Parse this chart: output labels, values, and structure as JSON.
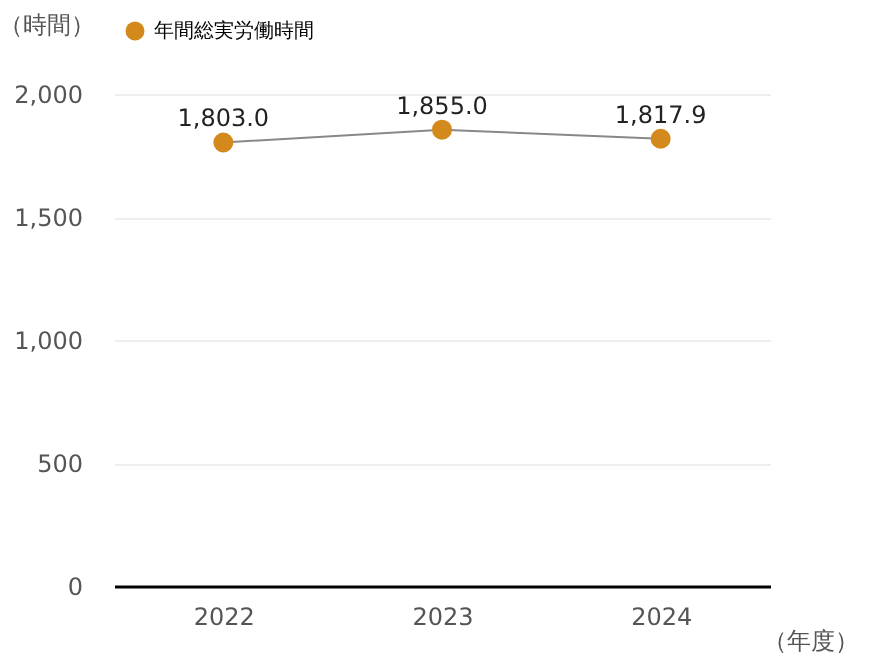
{
  "chart_data": {
    "type": "line",
    "ylabel": "（時間）",
    "xlabel": "（年度）",
    "categories": [
      "2022",
      "2023",
      "2024"
    ],
    "series": [
      {
        "name": "年間総実労働時間",
        "color": "#d4891c",
        "values": [
          1803.0,
          1855.0,
          1817.9
        ],
        "value_labels": [
          "1,803.0",
          "1,855.0",
          "1,817.9"
        ]
      }
    ],
    "ylim": [
      0,
      2000
    ],
    "yticks": [
      0,
      500,
      {
        "value": 1000,
        "label": "1,000"
      },
      {
        "value": 1500,
        "label": "1,500"
      },
      {
        "value": 2000,
        "label": "2,000"
      }
    ],
    "grid": "y",
    "legend": "top left",
    "marker": "circle",
    "line_style": "solid"
  }
}
